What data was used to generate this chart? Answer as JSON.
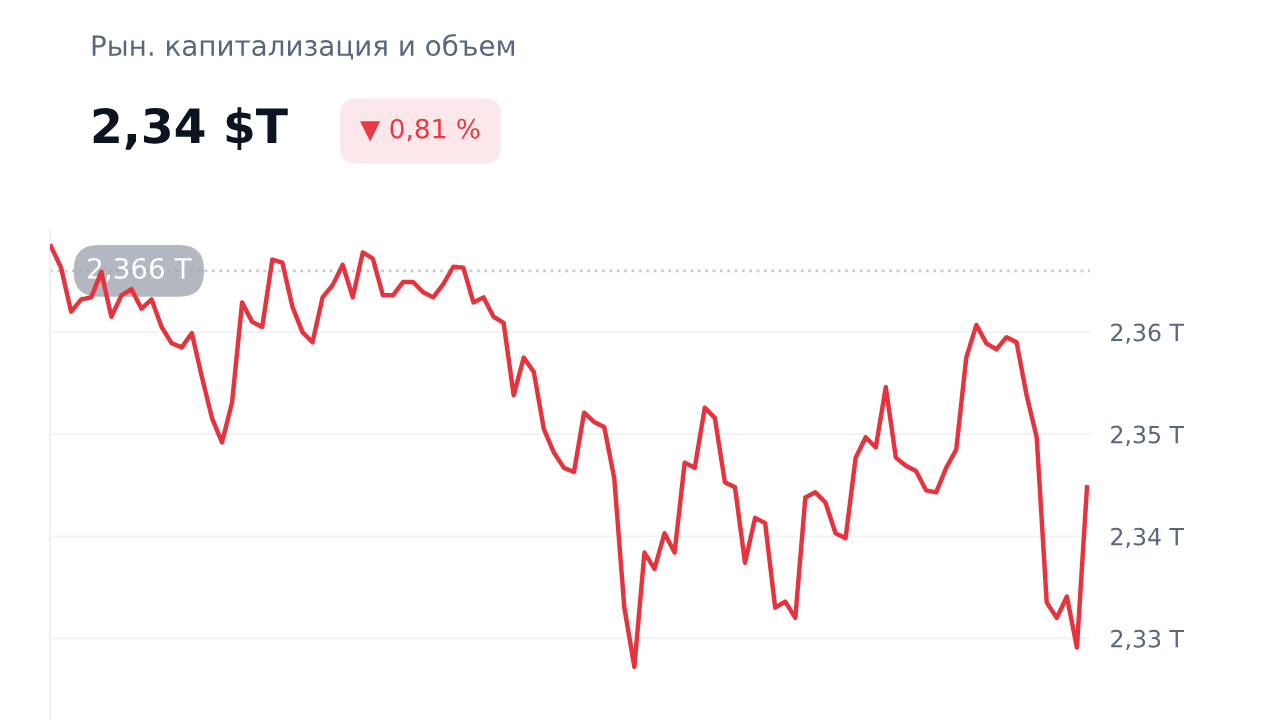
{
  "chart_data": {
    "type": "line",
    "title": "Рын. капитализация и объем",
    "subtitle": "2,34 $T",
    "annotations": [
      "▼ 0,81 %"
    ],
    "categories": [
      null,
      null,
      null,
      null,
      null,
      null,
      null,
      null,
      null,
      null,
      null,
      null,
      null,
      null,
      null,
      null,
      null,
      null,
      null,
      null,
      null,
      null,
      null,
      null,
      null,
      null,
      null,
      null,
      null,
      null,
      null,
      null,
      null,
      null,
      null,
      null,
      null,
      null,
      null,
      null,
      null,
      null,
      null,
      null,
      null,
      null,
      null,
      null,
      null,
      null,
      null,
      null,
      null,
      null,
      null,
      null,
      null,
      null,
      null,
      null,
      null,
      null,
      null,
      null,
      null,
      null,
      null,
      null,
      null,
      null,
      null,
      null,
      null,
      null,
      null,
      null,
      null,
      null,
      null,
      null,
      null,
      null,
      null,
      null,
      null,
      null,
      null,
      null,
      null,
      null,
      null,
      null,
      null,
      null,
      null,
      null,
      null,
      null,
      null,
      null,
      null,
      null,
      null,
      null
    ],
    "series": [
      {
        "color": "#e5343d",
        "values": [
          2.3684,
          2.3663,
          2.362,
          2.3632,
          2.3634,
          2.3659,
          2.3615,
          2.3636,
          2.3642,
          2.3623,
          2.3632,
          2.3605,
          2.3589,
          2.3585,
          2.3599,
          2.3556,
          2.3516,
          2.3492,
          2.3531,
          2.3629,
          2.361,
          2.3605,
          2.3671,
          2.3668,
          2.3625,
          2.36,
          2.359,
          2.3634,
          2.3646,
          2.3666,
          2.3634,
          2.3678,
          2.3672,
          2.3636,
          2.3636,
          2.3649,
          2.3649,
          2.3639,
          2.3634,
          2.3647,
          2.3664,
          2.3663,
          2.3629,
          2.3634,
          2.3615,
          2.3609,
          2.3538,
          2.3575,
          2.3561,
          2.3505,
          2.3482,
          2.3467,
          2.3463,
          2.3521,
          2.3512,
          2.3507,
          2.3457,
          2.333,
          2.3272,
          2.3384,
          2.3368,
          2.3403,
          2.3384,
          2.3472,
          2.3467,
          2.3526,
          2.3516,
          2.3453,
          2.3448,
          2.3374,
          2.3418,
          2.3413,
          2.333,
          2.3336,
          2.332,
          2.3438,
          2.3443,
          2.3433,
          2.3403,
          2.3398,
          2.3477,
          2.3497,
          2.3487,
          2.3546,
          2.3477,
          2.3469,
          2.3464,
          2.3445,
          2.3443,
          2.3467,
          2.3485,
          2.3575,
          2.3607,
          2.3589,
          2.3583,
          2.3595,
          2.359,
          2.3538,
          2.3497,
          2.3335,
          2.332,
          2.3341,
          2.3291,
          2.3448
        ]
      }
    ],
    "ylim": [
      2.322,
      2.37
    ],
    "yticks": [
      {
        "value": 2.33,
        "label": "2,33 T"
      },
      {
        "value": 2.34,
        "label": "2,34 T"
      },
      {
        "value": 2.35,
        "label": "2,35 T"
      },
      {
        "value": 2.36,
        "label": "2,36 T"
      }
    ],
    "grid": "y",
    "tick_labels": "y",
    "marker": "none",
    "line_style": "solid",
    "ref_lines": [
      {
        "axis": "y",
        "value": 2.366,
        "label": "2,366 T",
        "color": "#c8cbd2",
        "line_style": "dotted"
      }
    ]
  }
}
